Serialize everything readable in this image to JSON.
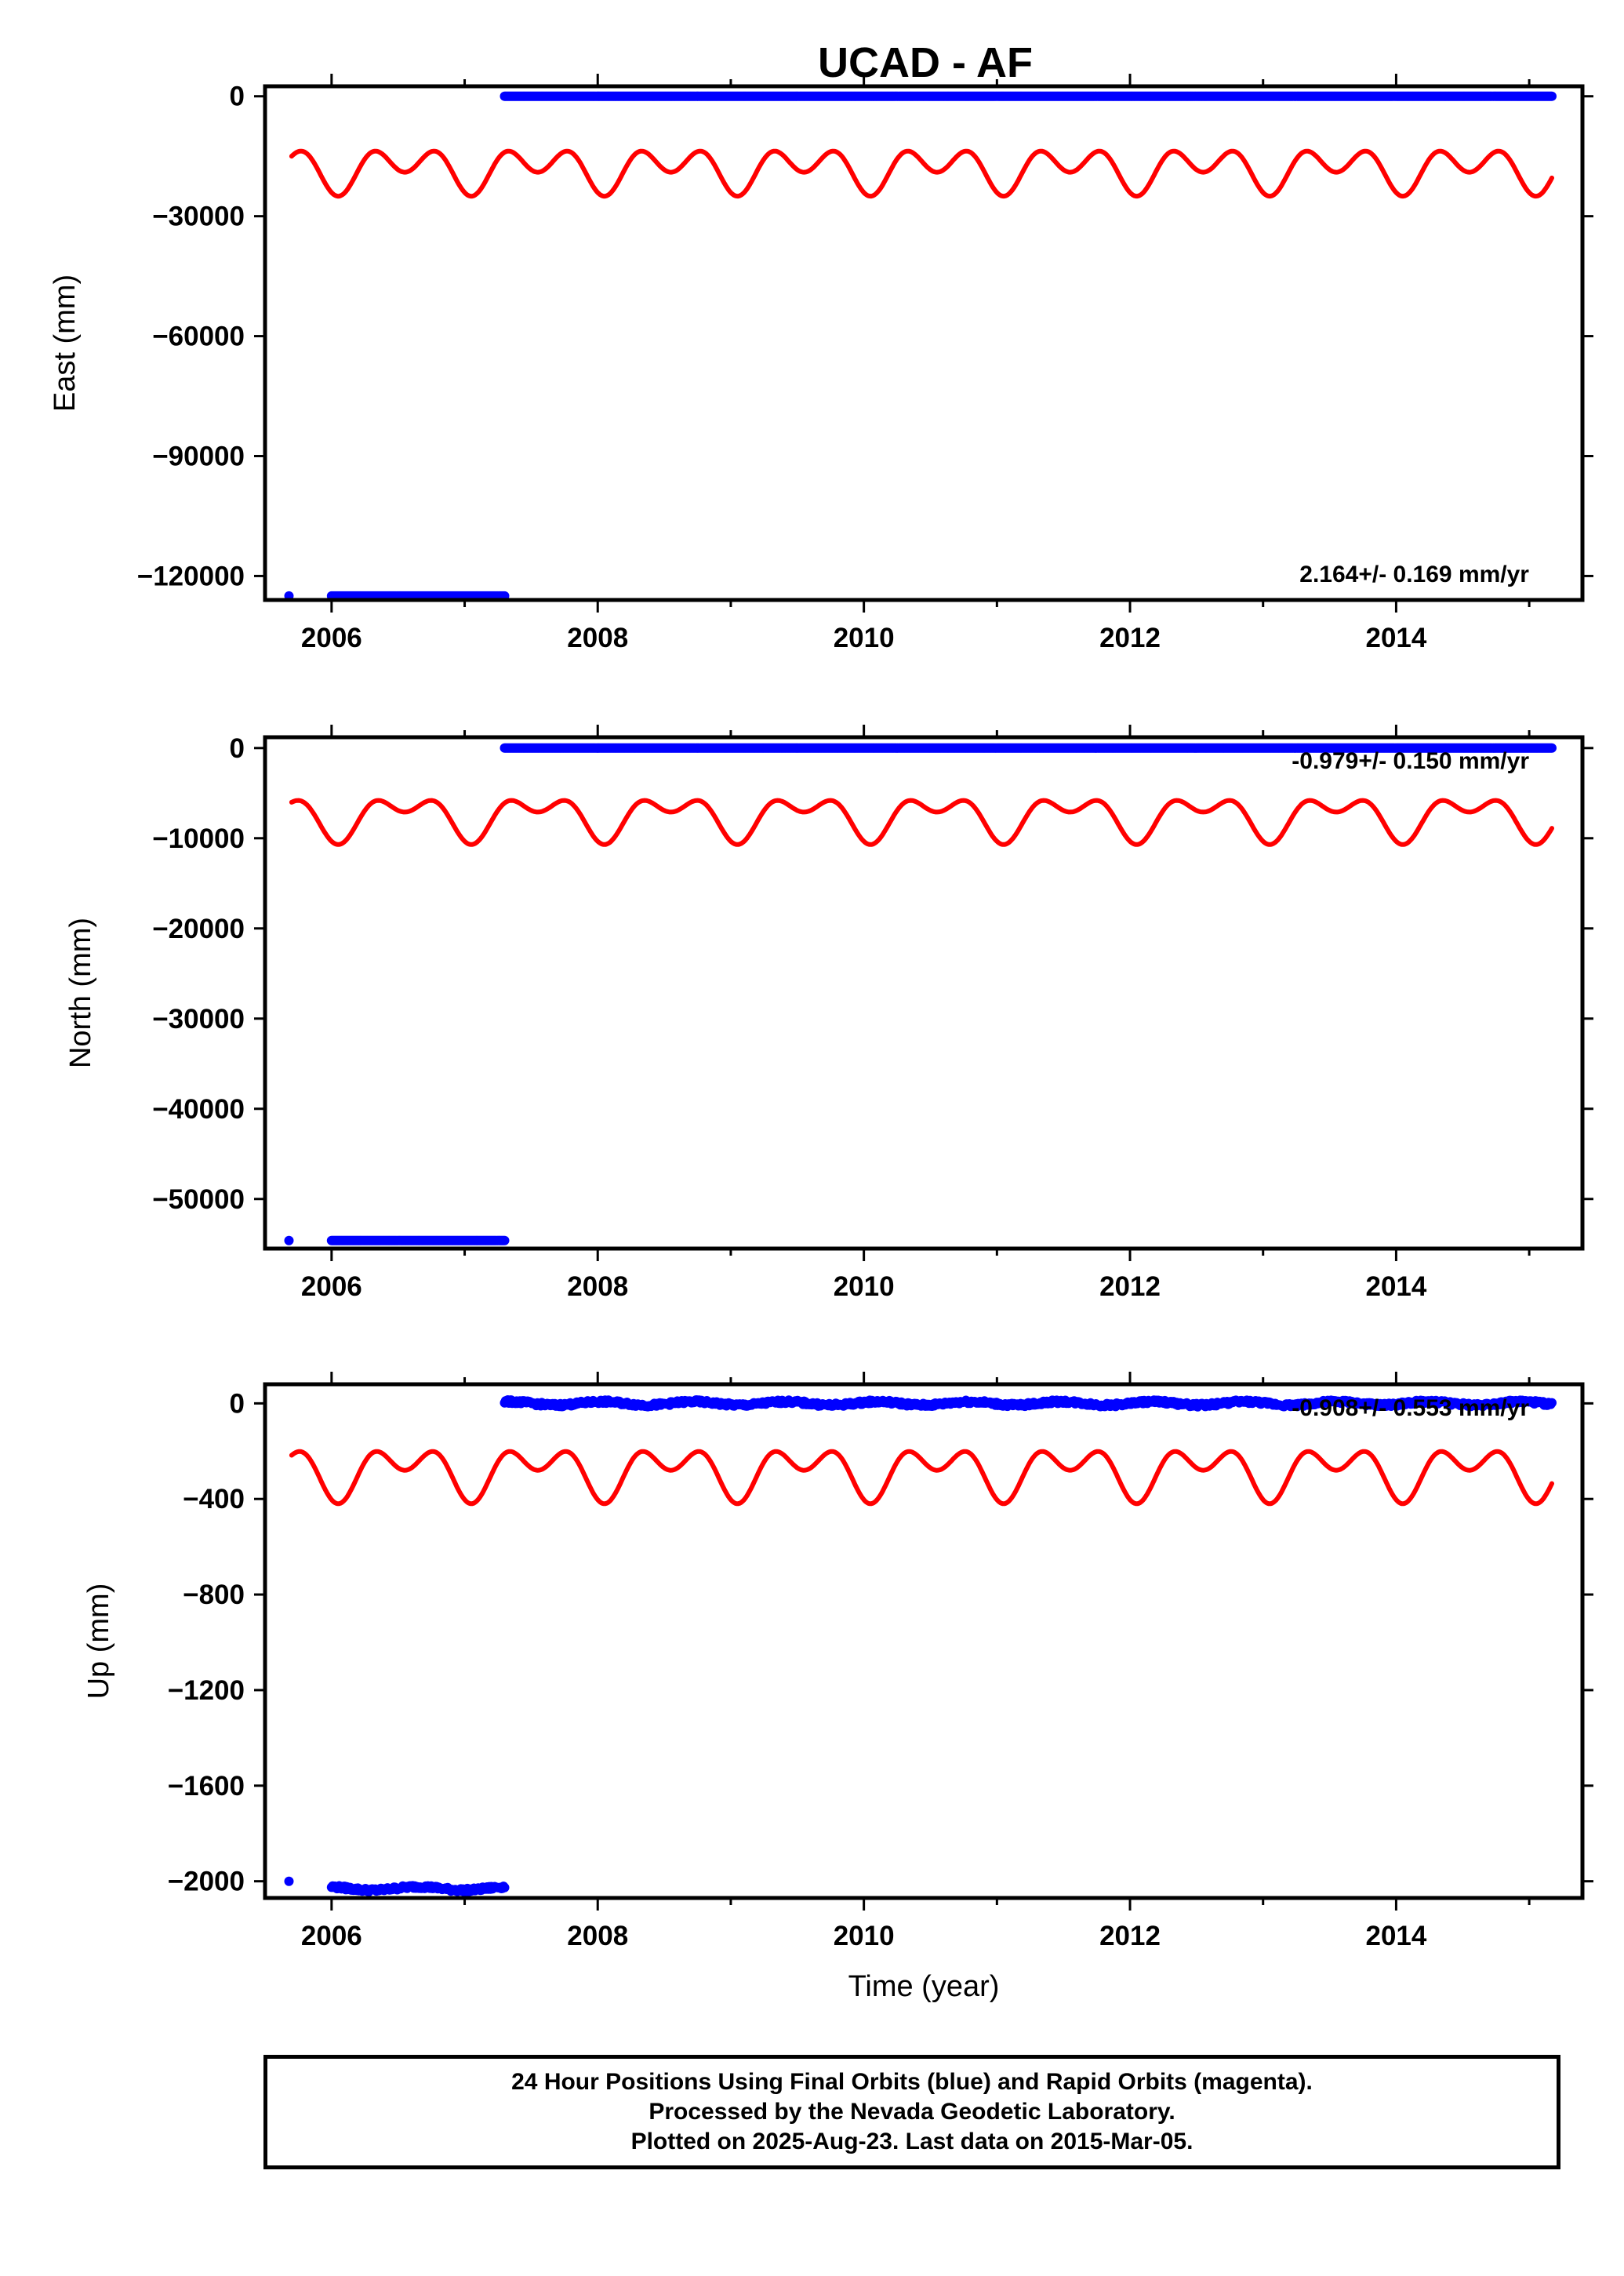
{
  "title": "UCAD - AF",
  "x_ticks": [
    2006,
    2008,
    2010,
    2012,
    2014
  ],
  "x_range": [
    2005.5,
    2015.4
  ],
  "x_label": "Time (year)",
  "footer": {
    "line1": "24 Hour Positions Using Final Orbits (blue) and Rapid Orbits (magenta).",
    "line2": "Processed by the Nevada Geodetic Laboratory.",
    "line3": "Plotted on 2025-Aug-23. Last data on 2015-Mar-05."
  },
  "colors": {
    "data": "#0000ff",
    "model": "#ff0000",
    "axis": "#000000"
  },
  "chart_data": [
    {
      "type": "scatter",
      "panel": "east",
      "ylabel": "East (mm)",
      "ylim": [
        -126000,
        2500
      ],
      "yticks": [
        0,
        -30000,
        -60000,
        -90000,
        -120000
      ],
      "ytick_labels": [
        "0",
        "−30000",
        "−60000",
        "−90000",
        "−120000"
      ],
      "rate_label": "2.164+/- 0.169 mm/yr",
      "rate_anchor": "bottom",
      "data_segments": [
        {
          "x": [
            2005.68,
            2005.68
          ],
          "y": [
            -125000,
            -125000
          ],
          "jitter": 0
        },
        {
          "x": [
            2006.0,
            2007.3
          ],
          "y": [
            -125000,
            -125000
          ],
          "jitter": 0
        },
        {
          "x": [
            2007.3,
            2015.17
          ],
          "y": [
            0,
            0
          ],
          "jitter": 0
        }
      ],
      "model": {
        "x": [
          2005.7,
          2015.17
        ],
        "base": -18000,
        "a1": 3000,
        "a2": 4000,
        "p2": 0.3,
        "offset1": 4000
      }
    },
    {
      "type": "scatter",
      "panel": "north",
      "ylabel": "North (mm)",
      "ylim": [
        -55500,
        1200
      ],
      "yticks": [
        0,
        -10000,
        -20000,
        -30000,
        -40000,
        -50000
      ],
      "ytick_labels": [
        "0",
        "−10000",
        "−20000",
        "−30000",
        "−40000",
        "−50000"
      ],
      "rate_label": "-0.979+/- 0.150 mm/yr",
      "rate_anchor": "top",
      "data_segments": [
        {
          "x": [
            2005.68,
            2005.68
          ],
          "y": [
            -54600,
            -54600
          ],
          "jitter": 0
        },
        {
          "x": [
            2006.0,
            2007.3
          ],
          "y": [
            -54600,
            -54600
          ],
          "jitter": 0
        },
        {
          "x": [
            2007.3,
            2015.17
          ],
          "y": [
            0,
            0
          ],
          "jitter": 0
        }
      ],
      "model": {
        "x": [
          2005.7,
          2015.17
        ],
        "base": -7500,
        "a1": 1800,
        "a2": 1400,
        "p2": 0.3,
        "offset1": 1800
      }
    },
    {
      "type": "scatter",
      "panel": "up",
      "ylabel": "Up (mm)",
      "ylim": [
        -2070,
        80
      ],
      "yticks": [
        0,
        -400,
        -800,
        -1200,
        -1600,
        -2000
      ],
      "ytick_labels": [
        "0",
        "−400",
        "−800",
        "−1200",
        "−1600",
        "−2000"
      ],
      "rate_label": "-0.908+/- 0.553 mm/yr",
      "rate_anchor": "top",
      "data_segments": [
        {
          "x": [
            2005.68,
            2005.68
          ],
          "y": [
            -2000,
            -2000
          ],
          "jitter": 0
        },
        {
          "x": [
            2006.0,
            2007.3
          ],
          "y": [
            -2030,
            -2030
          ],
          "jitter": 12
        },
        {
          "x": [
            2007.3,
            2015.17
          ],
          "y": [
            0,
            0
          ],
          "jitter": 12
        }
      ],
      "model": {
        "x": [
          2005.7,
          2015.17
        ],
        "base": -280,
        "a1": 70,
        "a2": 70,
        "p2": 0.3,
        "offset1": 70
      }
    }
  ]
}
